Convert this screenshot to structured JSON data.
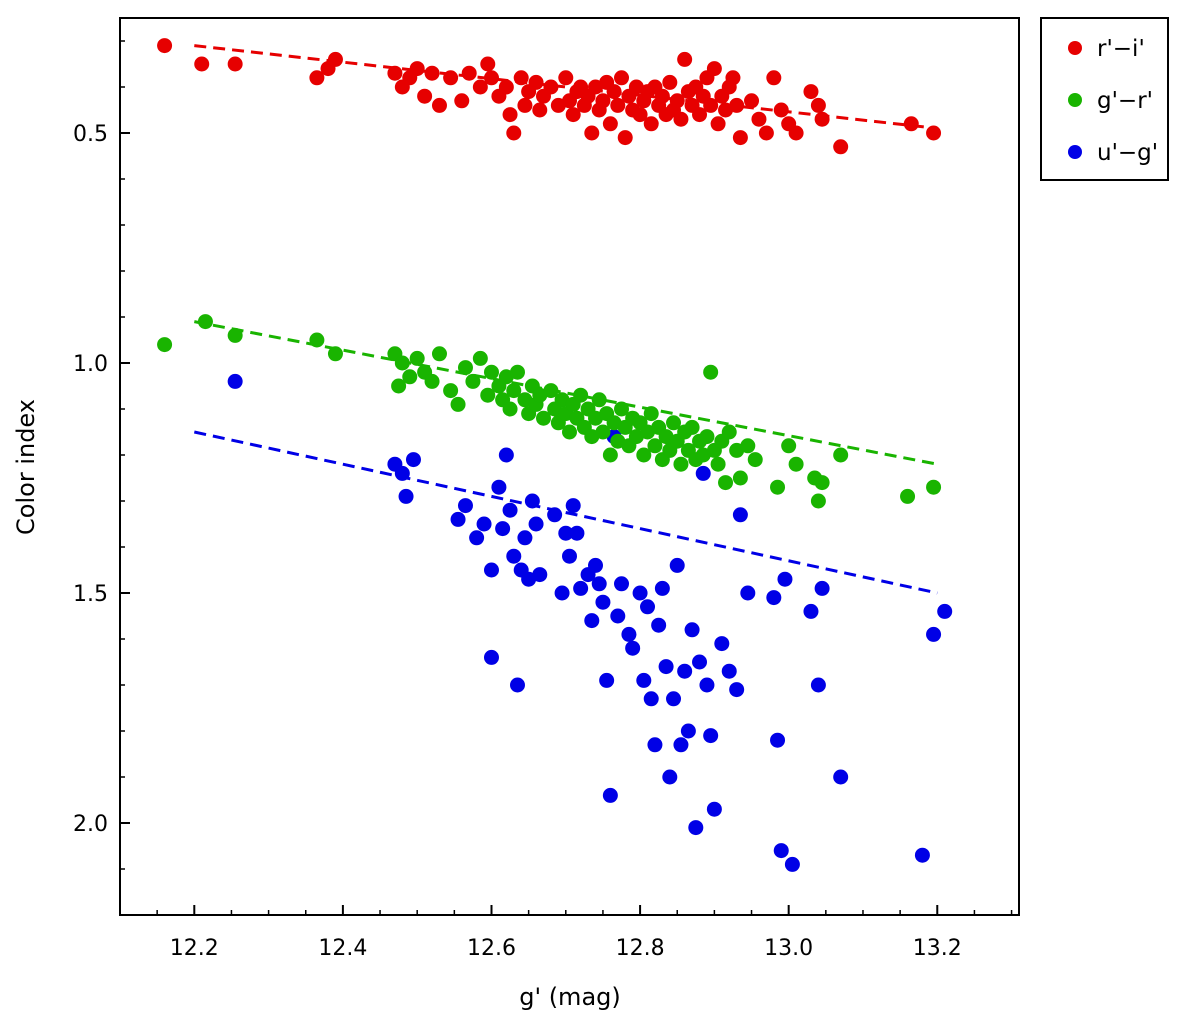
{
  "chart_data": {
    "type": "scatter",
    "xlabel": "g' (mag)",
    "ylabel": "Color index",
    "xlim": [
      12.1,
      13.31
    ],
    "ylim": [
      0.25,
      2.2
    ],
    "y_inverted": true,
    "x_ticks": [
      12.2,
      12.4,
      12.6,
      12.8,
      13.0,
      13.2
    ],
    "x_tick_labels": [
      "12.2",
      "12.4",
      "12.6",
      "12.8",
      "13.0",
      "13.2"
    ],
    "y_ticks": [
      0.5,
      1.0,
      1.5,
      2.0
    ],
    "y_tick_labels": [
      "0.5",
      "1.0",
      "1.5",
      "2.0"
    ],
    "legend_position": "outside-top-right",
    "series": [
      {
        "name": "r'−i'",
        "color": "#e60000",
        "trend": [
          [
            12.2,
            0.31
          ],
          [
            13.2,
            0.49
          ]
        ],
        "points": [
          [
            12.16,
            0.31
          ],
          [
            12.21,
            0.35
          ],
          [
            12.255,
            0.35
          ],
          [
            12.365,
            0.38
          ],
          [
            12.39,
            0.34
          ],
          [
            12.38,
            0.36
          ],
          [
            12.47,
            0.37
          ],
          [
            12.48,
            0.4
          ],
          [
            12.49,
            0.38
          ],
          [
            12.5,
            0.36
          ],
          [
            12.51,
            0.42
          ],
          [
            12.52,
            0.37
          ],
          [
            12.53,
            0.44
          ],
          [
            12.545,
            0.38
          ],
          [
            12.56,
            0.43
          ],
          [
            12.57,
            0.37
          ],
          [
            12.585,
            0.4
          ],
          [
            12.595,
            0.35
          ],
          [
            12.6,
            0.38
          ],
          [
            12.61,
            0.42
          ],
          [
            12.62,
            0.4
          ],
          [
            12.625,
            0.46
          ],
          [
            12.63,
            0.5
          ],
          [
            12.64,
            0.38
          ],
          [
            12.645,
            0.44
          ],
          [
            12.65,
            0.41
          ],
          [
            12.66,
            0.39
          ],
          [
            12.665,
            0.45
          ],
          [
            12.67,
            0.42
          ],
          [
            12.68,
            0.4
          ],
          [
            12.69,
            0.44
          ],
          [
            12.7,
            0.38
          ],
          [
            12.705,
            0.43
          ],
          [
            12.71,
            0.46
          ],
          [
            12.715,
            0.41
          ],
          [
            12.72,
            0.4
          ],
          [
            12.725,
            0.44
          ],
          [
            12.73,
            0.42
          ],
          [
            12.735,
            0.5
          ],
          [
            12.74,
            0.4
          ],
          [
            12.745,
            0.45
          ],
          [
            12.75,
            0.43
          ],
          [
            12.755,
            0.39
          ],
          [
            12.76,
            0.48
          ],
          [
            12.765,
            0.41
          ],
          [
            12.77,
            0.44
          ],
          [
            12.775,
            0.38
          ],
          [
            12.78,
            0.51
          ],
          [
            12.785,
            0.42
          ],
          [
            12.79,
            0.45
          ],
          [
            12.795,
            0.4
          ],
          [
            12.8,
            0.46
          ],
          [
            12.805,
            0.43
          ],
          [
            12.81,
            0.41
          ],
          [
            12.815,
            0.48
          ],
          [
            12.82,
            0.4
          ],
          [
            12.825,
            0.44
          ],
          [
            12.83,
            0.42
          ],
          [
            12.835,
            0.46
          ],
          [
            12.84,
            0.39
          ],
          [
            12.845,
            0.45
          ],
          [
            12.85,
            0.43
          ],
          [
            12.855,
            0.47
          ],
          [
            12.86,
            0.34
          ],
          [
            12.865,
            0.41
          ],
          [
            12.87,
            0.44
          ],
          [
            12.875,
            0.4
          ],
          [
            12.88,
            0.46
          ],
          [
            12.885,
            0.42
          ],
          [
            12.89,
            0.38
          ],
          [
            12.895,
            0.44
          ],
          [
            12.9,
            0.36
          ],
          [
            12.905,
            0.48
          ],
          [
            12.91,
            0.42
          ],
          [
            12.915,
            0.45
          ],
          [
            12.92,
            0.4
          ],
          [
            12.925,
            0.38
          ],
          [
            12.93,
            0.44
          ],
          [
            12.935,
            0.51
          ],
          [
            12.95,
            0.43
          ],
          [
            12.96,
            0.47
          ],
          [
            12.97,
            0.5
          ],
          [
            12.98,
            0.38
          ],
          [
            12.99,
            0.45
          ],
          [
            13.0,
            0.48
          ],
          [
            13.01,
            0.5
          ],
          [
            13.03,
            0.41
          ],
          [
            13.04,
            0.44
          ],
          [
            13.045,
            0.47
          ],
          [
            13.07,
            0.53
          ],
          [
            13.165,
            0.48
          ],
          [
            13.195,
            0.5
          ]
        ]
      },
      {
        "name": "g'−r'",
        "color": "#19b400",
        "trend": [
          [
            12.2,
            0.91
          ],
          [
            13.2,
            1.22
          ]
        ],
        "points": [
          [
            12.16,
            0.96
          ],
          [
            12.215,
            0.91
          ],
          [
            12.255,
            0.94
          ],
          [
            12.365,
            0.95
          ],
          [
            12.39,
            0.98
          ],
          [
            12.47,
            0.98
          ],
          [
            12.48,
            1.0
          ],
          [
            12.475,
            1.05
          ],
          [
            12.49,
            1.03
          ],
          [
            12.5,
            0.99
          ],
          [
            12.51,
            1.02
          ],
          [
            12.52,
            1.04
          ],
          [
            12.53,
            0.98
          ],
          [
            12.545,
            1.06
          ],
          [
            12.555,
            1.09
          ],
          [
            12.565,
            1.01
          ],
          [
            12.575,
            1.04
          ],
          [
            12.585,
            0.99
          ],
          [
            12.595,
            1.07
          ],
          [
            12.6,
            1.02
          ],
          [
            12.61,
            1.05
          ],
          [
            12.615,
            1.08
          ],
          [
            12.62,
            1.03
          ],
          [
            12.625,
            1.1
          ],
          [
            12.63,
            1.06
          ],
          [
            12.635,
            1.02
          ],
          [
            12.645,
            1.08
          ],
          [
            12.65,
            1.11
          ],
          [
            12.655,
            1.05
          ],
          [
            12.66,
            1.09
          ],
          [
            12.665,
            1.07
          ],
          [
            12.67,
            1.12
          ],
          [
            12.68,
            1.06
          ],
          [
            12.685,
            1.1
          ],
          [
            12.69,
            1.13
          ],
          [
            12.695,
            1.08
          ],
          [
            12.7,
            1.11
          ],
          [
            12.705,
            1.15
          ],
          [
            12.71,
            1.09
          ],
          [
            12.715,
            1.12
          ],
          [
            12.72,
            1.07
          ],
          [
            12.725,
            1.14
          ],
          [
            12.73,
            1.1
          ],
          [
            12.735,
            1.16
          ],
          [
            12.74,
            1.12
          ],
          [
            12.745,
            1.08
          ],
          [
            12.75,
            1.15
          ],
          [
            12.755,
            1.11
          ],
          [
            12.76,
            1.2
          ],
          [
            12.765,
            1.13
          ],
          [
            12.77,
            1.17
          ],
          [
            12.775,
            1.1
          ],
          [
            12.78,
            1.14
          ],
          [
            12.785,
            1.18
          ],
          [
            12.79,
            1.12
          ],
          [
            12.795,
            1.16
          ],
          [
            12.8,
            1.13
          ],
          [
            12.805,
            1.2
          ],
          [
            12.81,
            1.15
          ],
          [
            12.815,
            1.11
          ],
          [
            12.82,
            1.18
          ],
          [
            12.825,
            1.14
          ],
          [
            12.83,
            1.21
          ],
          [
            12.835,
            1.16
          ],
          [
            12.84,
            1.19
          ],
          [
            12.845,
            1.13
          ],
          [
            12.85,
            1.17
          ],
          [
            12.855,
            1.22
          ],
          [
            12.86,
            1.15
          ],
          [
            12.865,
            1.19
          ],
          [
            12.87,
            1.14
          ],
          [
            12.875,
            1.21
          ],
          [
            12.88,
            1.17
          ],
          [
            12.885,
            1.2
          ],
          [
            12.89,
            1.16
          ],
          [
            12.895,
            1.02
          ],
          [
            12.9,
            1.19
          ],
          [
            12.905,
            1.22
          ],
          [
            12.91,
            1.17
          ],
          [
            12.915,
            1.26
          ],
          [
            12.92,
            1.15
          ],
          [
            12.93,
            1.19
          ],
          [
            12.935,
            1.25
          ],
          [
            12.945,
            1.18
          ],
          [
            12.955,
            1.21
          ],
          [
            12.985,
            1.27
          ],
          [
            13.0,
            1.18
          ],
          [
            13.01,
            1.22
          ],
          [
            13.035,
            1.25
          ],
          [
            13.04,
            1.3
          ],
          [
            13.045,
            1.26
          ],
          [
            13.07,
            1.2
          ],
          [
            13.16,
            1.29
          ],
          [
            13.195,
            1.27
          ]
        ]
      },
      {
        "name": "u'−g'",
        "color": "#0000e6",
        "trend": [
          [
            12.2,
            1.15
          ],
          [
            13.2,
            1.5
          ]
        ],
        "points": [
          [
            12.255,
            1.04
          ],
          [
            12.47,
            1.22
          ],
          [
            12.485,
            1.29
          ],
          [
            12.495,
            1.21
          ],
          [
            12.48,
            1.24
          ],
          [
            12.555,
            1.34
          ],
          [
            12.565,
            1.31
          ],
          [
            12.58,
            1.38
          ],
          [
            12.59,
            1.35
          ],
          [
            12.6,
            1.64
          ],
          [
            12.6,
            1.45
          ],
          [
            12.61,
            1.27
          ],
          [
            12.615,
            1.36
          ],
          [
            12.62,
            1.2
          ],
          [
            12.625,
            1.32
          ],
          [
            12.63,
            1.42
          ],
          [
            12.635,
            1.7
          ],
          [
            12.64,
            1.45
          ],
          [
            12.645,
            1.38
          ],
          [
            12.65,
            1.47
          ],
          [
            12.655,
            1.3
          ],
          [
            12.66,
            1.35
          ],
          [
            12.665,
            1.46
          ],
          [
            12.685,
            1.33
          ],
          [
            12.695,
            1.5
          ],
          [
            12.7,
            1.37
          ],
          [
            12.705,
            1.42
          ],
          [
            12.71,
            1.31
          ],
          [
            12.715,
            1.37
          ],
          [
            12.72,
            1.49
          ],
          [
            12.73,
            1.46
          ],
          [
            12.735,
            1.56
          ],
          [
            12.74,
            1.44
          ],
          [
            12.745,
            1.48
          ],
          [
            12.75,
            1.52
          ],
          [
            12.755,
            1.69
          ],
          [
            12.76,
            1.94
          ],
          [
            12.765,
            1.16
          ],
          [
            12.77,
            1.55
          ],
          [
            12.775,
            1.48
          ],
          [
            12.785,
            1.59
          ],
          [
            12.79,
            1.62
          ],
          [
            12.8,
            1.5
          ],
          [
            12.805,
            1.69
          ],
          [
            12.81,
            1.53
          ],
          [
            12.815,
            1.73
          ],
          [
            12.82,
            1.83
          ],
          [
            12.825,
            1.57
          ],
          [
            12.83,
            1.49
          ],
          [
            12.835,
            1.66
          ],
          [
            12.84,
            1.9
          ],
          [
            12.845,
            1.73
          ],
          [
            12.85,
            1.44
          ],
          [
            12.855,
            1.83
          ],
          [
            12.86,
            1.67
          ],
          [
            12.865,
            1.8
          ],
          [
            12.87,
            1.58
          ],
          [
            12.875,
            2.01
          ],
          [
            12.88,
            1.65
          ],
          [
            12.885,
            1.24
          ],
          [
            12.89,
            1.7
          ],
          [
            12.895,
            1.81
          ],
          [
            12.9,
            1.97
          ],
          [
            12.91,
            1.61
          ],
          [
            12.92,
            1.67
          ],
          [
            12.93,
            1.71
          ],
          [
            12.935,
            1.33
          ],
          [
            12.945,
            1.5
          ],
          [
            12.98,
            1.51
          ],
          [
            12.985,
            1.82
          ],
          [
            12.99,
            2.06
          ],
          [
            12.995,
            1.47
          ],
          [
            13.005,
            2.09
          ],
          [
            13.03,
            1.54
          ],
          [
            13.04,
            1.7
          ],
          [
            13.045,
            1.49
          ],
          [
            13.07,
            1.9
          ],
          [
            13.18,
            2.07
          ],
          [
            13.195,
            1.59
          ],
          [
            13.21,
            1.54
          ]
        ]
      }
    ]
  }
}
